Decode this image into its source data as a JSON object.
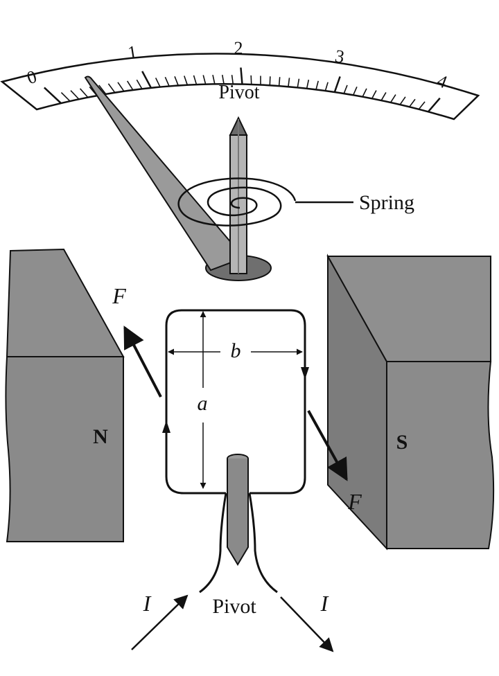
{
  "scale": {
    "tick_labels": [
      "0",
      "1",
      "2",
      "3",
      "4"
    ]
  },
  "labels": {
    "pivot_top": "Pivot",
    "spring": "Spring",
    "pivot_bottom": "Pivot",
    "force_left": "F",
    "force_right": "F",
    "dimension_a": "a",
    "dimension_b": "b",
    "current_in": "I",
    "current_out": "I",
    "north_pole": "N",
    "south_pole": "S"
  },
  "colors": {
    "magnet_fill": "#8c8c8c",
    "magnet_dark": "#7a7a7a",
    "pointer_fill": "#9a9a9a",
    "ink": "#111111"
  }
}
